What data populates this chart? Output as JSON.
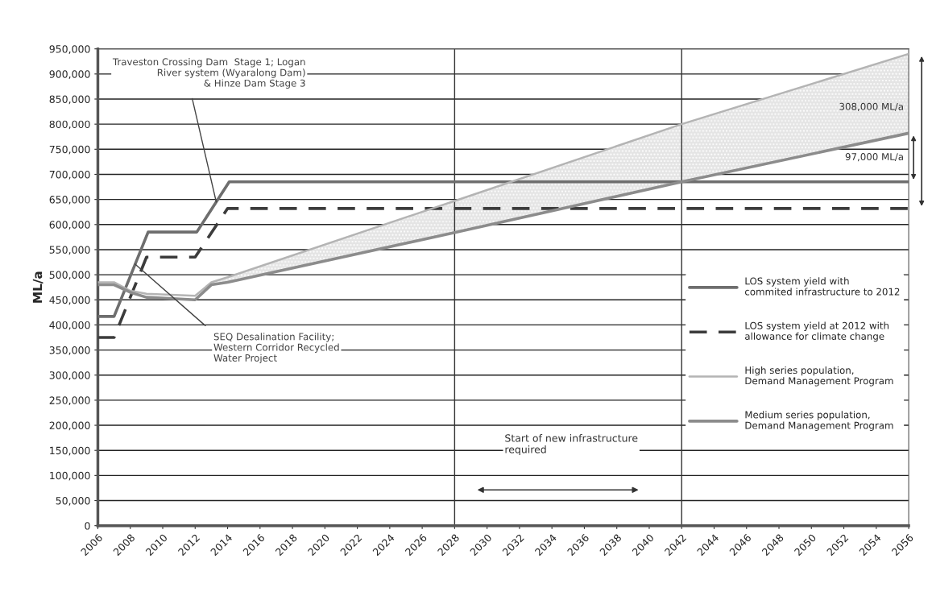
{
  "chart_data": {
    "type": "line",
    "ylabel": "ML/a",
    "series": [
      {
        "name": "LOS system yield with\ncommited infrastructure to 2012",
        "color": "#6e6e6e",
        "line_style": "solid",
        "x": [
          2006,
          2007,
          2009.1,
          2012.1,
          2014.1,
          2056
        ],
        "values": [
          417000,
          417000,
          585000,
          585000,
          685000,
          685000
        ]
      },
      {
        "name": "LOS system yield at 2012 with\nallowance for climate change",
        "color": "#3c3c3c",
        "line_style": "dashed",
        "x": [
          2006,
          2007,
          2009,
          2012,
          2014,
          2056
        ],
        "values": [
          375000,
          375000,
          535000,
          535000,
          632000,
          632000
        ]
      },
      {
        "name": "High series population,\nDemand Management Program",
        "color": "#b4b4b4",
        "line_style": "solid",
        "x": [
          2006,
          2007,
          2008,
          2009,
          2012,
          2013,
          2014,
          2028,
          2042,
          2056
        ],
        "values": [
          485000,
          485000,
          468000,
          462000,
          458000,
          485000,
          495000,
          647000,
          800000,
          940000
        ],
        "lower": [
          null,
          null,
          null,
          null,
          null,
          480000,
          485000,
          584000,
          685000,
          782000
        ],
        "upper": [
          null,
          null,
          null,
          null,
          null,
          485000,
          495000,
          647000,
          800000,
          940000
        ]
      },
      {
        "name": "Medium series population,\nDemand Management Program",
        "color": "#8c8c8c",
        "line_style": "solid",
        "x": [
          2006,
          2007,
          2008,
          2009,
          2012,
          2013,
          2014,
          2028,
          2042,
          2056
        ],
        "values": [
          480000,
          480000,
          465000,
          455000,
          450000,
          480000,
          485000,
          584000,
          685000,
          782000
        ]
      }
    ],
    "xlim": [
      2006,
      2056
    ],
    "xticks": [
      2006,
      2008,
      2010,
      2012,
      2014,
      2016,
      2018,
      2020,
      2022,
      2024,
      2026,
      2028,
      2030,
      2032,
      2034,
      2036,
      2038,
      2040,
      2042,
      2044,
      2046,
      2048,
      2050,
      2052,
      2054,
      2056
    ],
    "ylim": [
      0,
      950000
    ],
    "yticks": [
      {
        "value": 0,
        "label": "0"
      },
      {
        "value": 50000,
        "label": "50,000"
      },
      {
        "value": 100000,
        "label": "100,000"
      },
      {
        "value": 150000,
        "label": "150,000"
      },
      {
        "value": 200000,
        "label": "200,000"
      },
      {
        "value": 250000,
        "label": "250,000"
      },
      {
        "value": 300000,
        "label": "300,000"
      },
      {
        "value": 350000,
        "label": "350,000"
      },
      {
        "value": 400000,
        "label": "400,000"
      },
      {
        "value": 450000,
        "label": "450,000"
      },
      {
        "value": 500000,
        "label": "500,000"
      },
      {
        "value": 550000,
        "label": "550,000"
      },
      {
        "value": 600000,
        "label": "600,000"
      },
      {
        "value": 650000,
        "label": "650,000"
      },
      {
        "value": 700000,
        "label": "700,000"
      },
      {
        "value": 750000,
        "label": "750,000"
      },
      {
        "value": 800000,
        "label": "800,000"
      },
      {
        "value": 850000,
        "label": "850,000"
      },
      {
        "value": 900000,
        "label": "900,000"
      },
      {
        "value": 950000,
        "label": "950,000"
      }
    ],
    "ref_lines": [
      {
        "axis": "x",
        "value": 2028,
        "color": "#333333"
      },
      {
        "axis": "x",
        "value": 2042,
        "color": "#333333"
      }
    ],
    "annotations": [
      {
        "text": "Traveston Crossing Dam  Stage 1; Logan\nRiver system (Wyaralong Dam)\n& Hinze Dam Stage 3",
        "x": 2013.3,
        "y": 645000
      },
      {
        "text": "SEQ Desalination Facility;\nWestern Corridor Recycled\nWater Project",
        "x": 2008.3,
        "y": 521000
      },
      "Start of new infrastructure\nrequired",
      "308,000 ML/a",
      "97,000 ML/a"
    ],
    "grid": "y",
    "legend": "right",
    "marker": "none"
  }
}
